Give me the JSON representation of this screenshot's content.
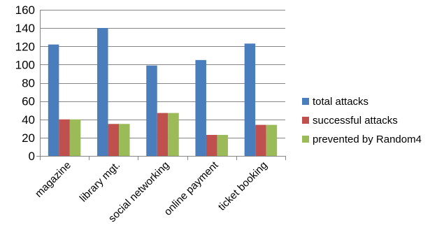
{
  "chart_data": {
    "type": "bar",
    "categories": [
      "magazine",
      "library mgt.",
      "social networking",
      "online payment",
      "ticket booking"
    ],
    "series": [
      {
        "name": "total attacks",
        "values": [
          122,
          140,
          99,
          105,
          123
        ],
        "color": "#4a7dbc"
      },
      {
        "name": "successful attacks",
        "values": [
          40,
          35,
          47,
          23,
          34
        ],
        "color": "#c0504d"
      },
      {
        "name": "prevented by Random4",
        "values": [
          40,
          35,
          47,
          23,
          34
        ],
        "color": "#9bbb59"
      }
    ],
    "ylim": [
      0,
      160
    ],
    "yticks": [
      0,
      20,
      40,
      60,
      80,
      100,
      120,
      140,
      160
    ],
    "grid": true,
    "legend": "right",
    "title": "",
    "xlabel": "",
    "ylabel": ""
  }
}
